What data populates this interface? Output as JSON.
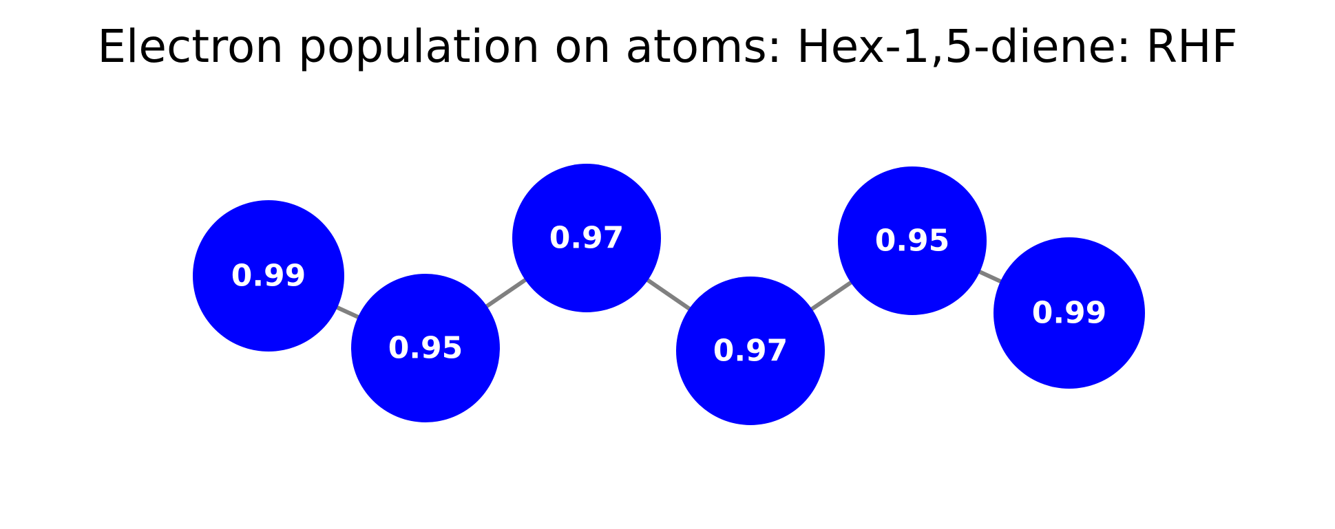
{
  "title": "Electron population on atoms: Hex-1,5-diene: RHF",
  "colors": {
    "atom_fill": "#0000ff",
    "bond": "#808080",
    "label": "#ffffff",
    "title": "#000000"
  },
  "atoms": [
    {
      "id": "C1",
      "population": "0.99"
    },
    {
      "id": "C2",
      "population": "0.95"
    },
    {
      "id": "C3",
      "population": "0.97"
    },
    {
      "id": "C4",
      "population": "0.97"
    },
    {
      "id": "C5",
      "population": "0.95"
    },
    {
      "id": "C6",
      "population": "0.99"
    }
  ],
  "bonds": [
    [
      "C1",
      "C2"
    ],
    [
      "C2",
      "C3"
    ],
    [
      "C3",
      "C4"
    ],
    [
      "C4",
      "C5"
    ],
    [
      "C5",
      "C6"
    ]
  ]
}
